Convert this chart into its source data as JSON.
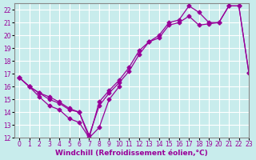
{
  "xlabel": "Windchill (Refroidissement éolien,°C)",
  "bg_color": "#c8ecec",
  "line_color": "#990099",
  "grid_color": "#ffffff",
  "xlim": [
    -0.5,
    23
  ],
  "ylim": [
    12,
    22.5
  ],
  "xticks": [
    0,
    1,
    2,
    3,
    4,
    5,
    6,
    7,
    8,
    9,
    10,
    11,
    12,
    13,
    14,
    15,
    16,
    17,
    18,
    19,
    20,
    21,
    22,
    23
  ],
  "yticks": [
    12,
    13,
    14,
    15,
    16,
    17,
    18,
    19,
    20,
    21,
    22
  ],
  "line1_x": [
    0,
    1,
    2,
    3,
    4,
    5,
    6,
    7,
    8,
    9,
    10
  ],
  "line1_y": [
    16.7,
    16.0,
    15.2,
    14.5,
    14.2,
    13.5,
    13.2,
    12.0,
    12.8,
    15.0,
    16.0
  ],
  "line2_x": [
    0,
    1,
    2,
    3,
    4,
    5,
    6,
    7,
    8,
    9,
    10,
    11,
    12,
    13,
    14,
    15,
    16,
    17,
    18,
    19,
    20,
    21,
    22,
    23
  ],
  "line2_y": [
    16.7,
    16.0,
    15.5,
    15.0,
    14.7,
    14.2,
    14.0,
    12.0,
    14.8,
    15.7,
    16.5,
    17.5,
    18.8,
    19.5,
    20.0,
    21.0,
    21.2,
    22.3,
    21.8,
    21.0,
    21.0,
    22.3,
    22.3,
    17.1
  ],
  "line3_x": [
    0,
    1,
    2,
    3,
    4,
    5,
    6,
    7,
    8,
    9,
    10,
    11,
    12,
    13,
    14,
    15,
    16,
    17,
    18,
    19,
    20,
    21,
    22,
    23
  ],
  "line3_y": [
    16.7,
    16.0,
    15.5,
    15.2,
    14.8,
    14.3,
    14.0,
    12.2,
    14.5,
    15.5,
    16.3,
    17.2,
    18.5,
    19.5,
    19.8,
    20.8,
    21.0,
    21.5,
    20.8,
    20.9,
    21.0,
    22.3,
    22.3,
    17.1
  ],
  "marker": "D",
  "markersize": 2.5,
  "linewidth": 0.9,
  "xlabel_fontsize": 6.5,
  "tick_fontsize": 5.5
}
